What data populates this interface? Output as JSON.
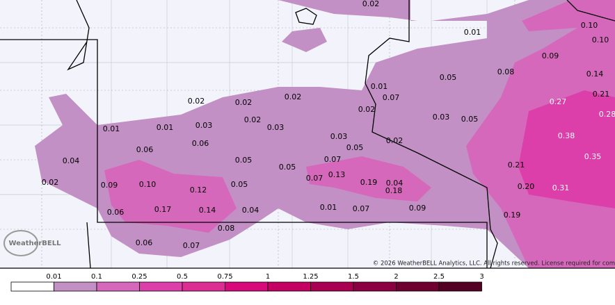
{
  "map": {
    "labels": [
      "0.02",
      "0.01",
      "0.10",
      "0.10",
      "0.09",
      "0.08",
      "0.05",
      "0.14",
      "0.21",
      "0.27",
      "0.28",
      "0.01",
      "0.07",
      "0.02",
      "0.02",
      "0.02",
      "0.02",
      "0.03",
      "0.05",
      "0.38",
      "0.01",
      "0.01",
      "0.03",
      "0.02",
      "0.03",
      "0.03",
      "0.02",
      "0.05",
      "0.06",
      "0.06",
      "0.04",
      "0.05",
      "0.05",
      "0.07",
      "0.35",
      "0.21",
      "0.02",
      "0.09",
      "0.10",
      "0.12",
      "0.05",
      "0.07",
      "0.13",
      "0.19",
      "0.04",
      "0.18",
      "0.20",
      "0.31",
      "0.06",
      "0.17",
      "0.14",
      "0.04",
      "0.01",
      "0.07",
      "0.09",
      "0.19",
      "0.08",
      "0.06",
      "0.07"
    ],
    "copyright": "© 2026 WeatherBELL Analytics, LLC. All rights reserved. License required for com",
    "logo": "WeatherBELL"
  },
  "legend": {
    "labels": [
      "0.01",
      "0.1",
      "0.25",
      "0.5",
      "0.75",
      "1",
      "1.25",
      "1.5",
      "2",
      "2.5",
      "3"
    ],
    "colors": [
      "#ffffff",
      "#c390c6",
      "#d668bb",
      "#dc3fa9",
      "#dc2d93",
      "#d8097a",
      "#c40063",
      "#a90052",
      "#8b0040",
      "#6e0030",
      "#540022"
    ]
  }
}
